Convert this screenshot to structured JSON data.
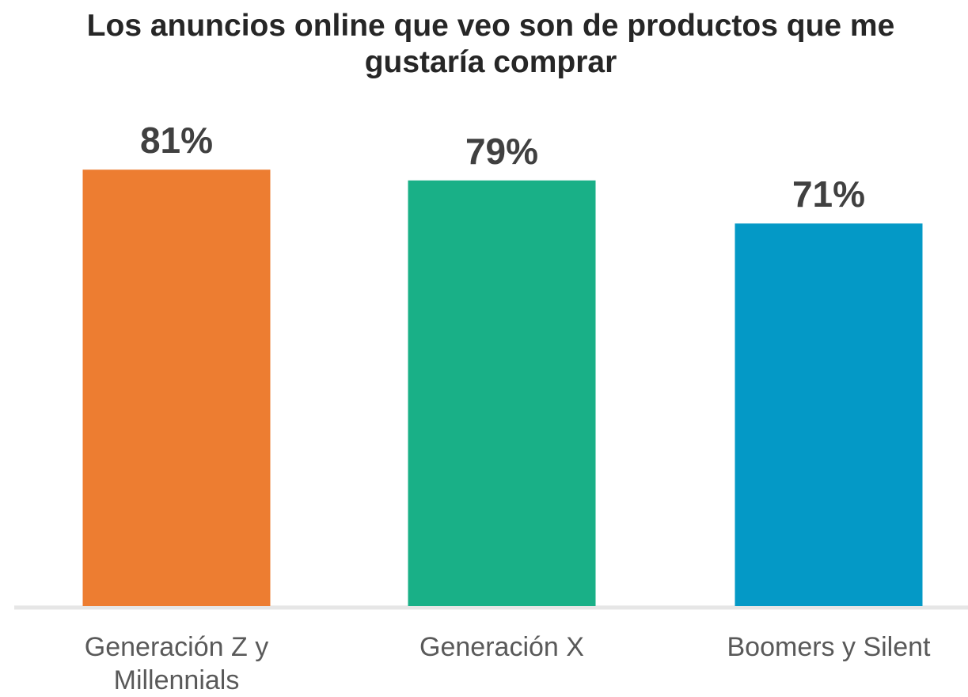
{
  "chart_data": {
    "type": "bar",
    "title": "Los anuncios online que veo son de productos que me gustaría comprar",
    "categories": [
      "Generación Z y Millennials",
      "Generación X",
      "Boomers y Silent"
    ],
    "values": [
      81,
      79,
      71
    ],
    "value_labels": [
      "81%",
      "79%",
      "71%"
    ],
    "colors": [
      "#ed7d31",
      "#19b087",
      "#0499c6"
    ]
  }
}
